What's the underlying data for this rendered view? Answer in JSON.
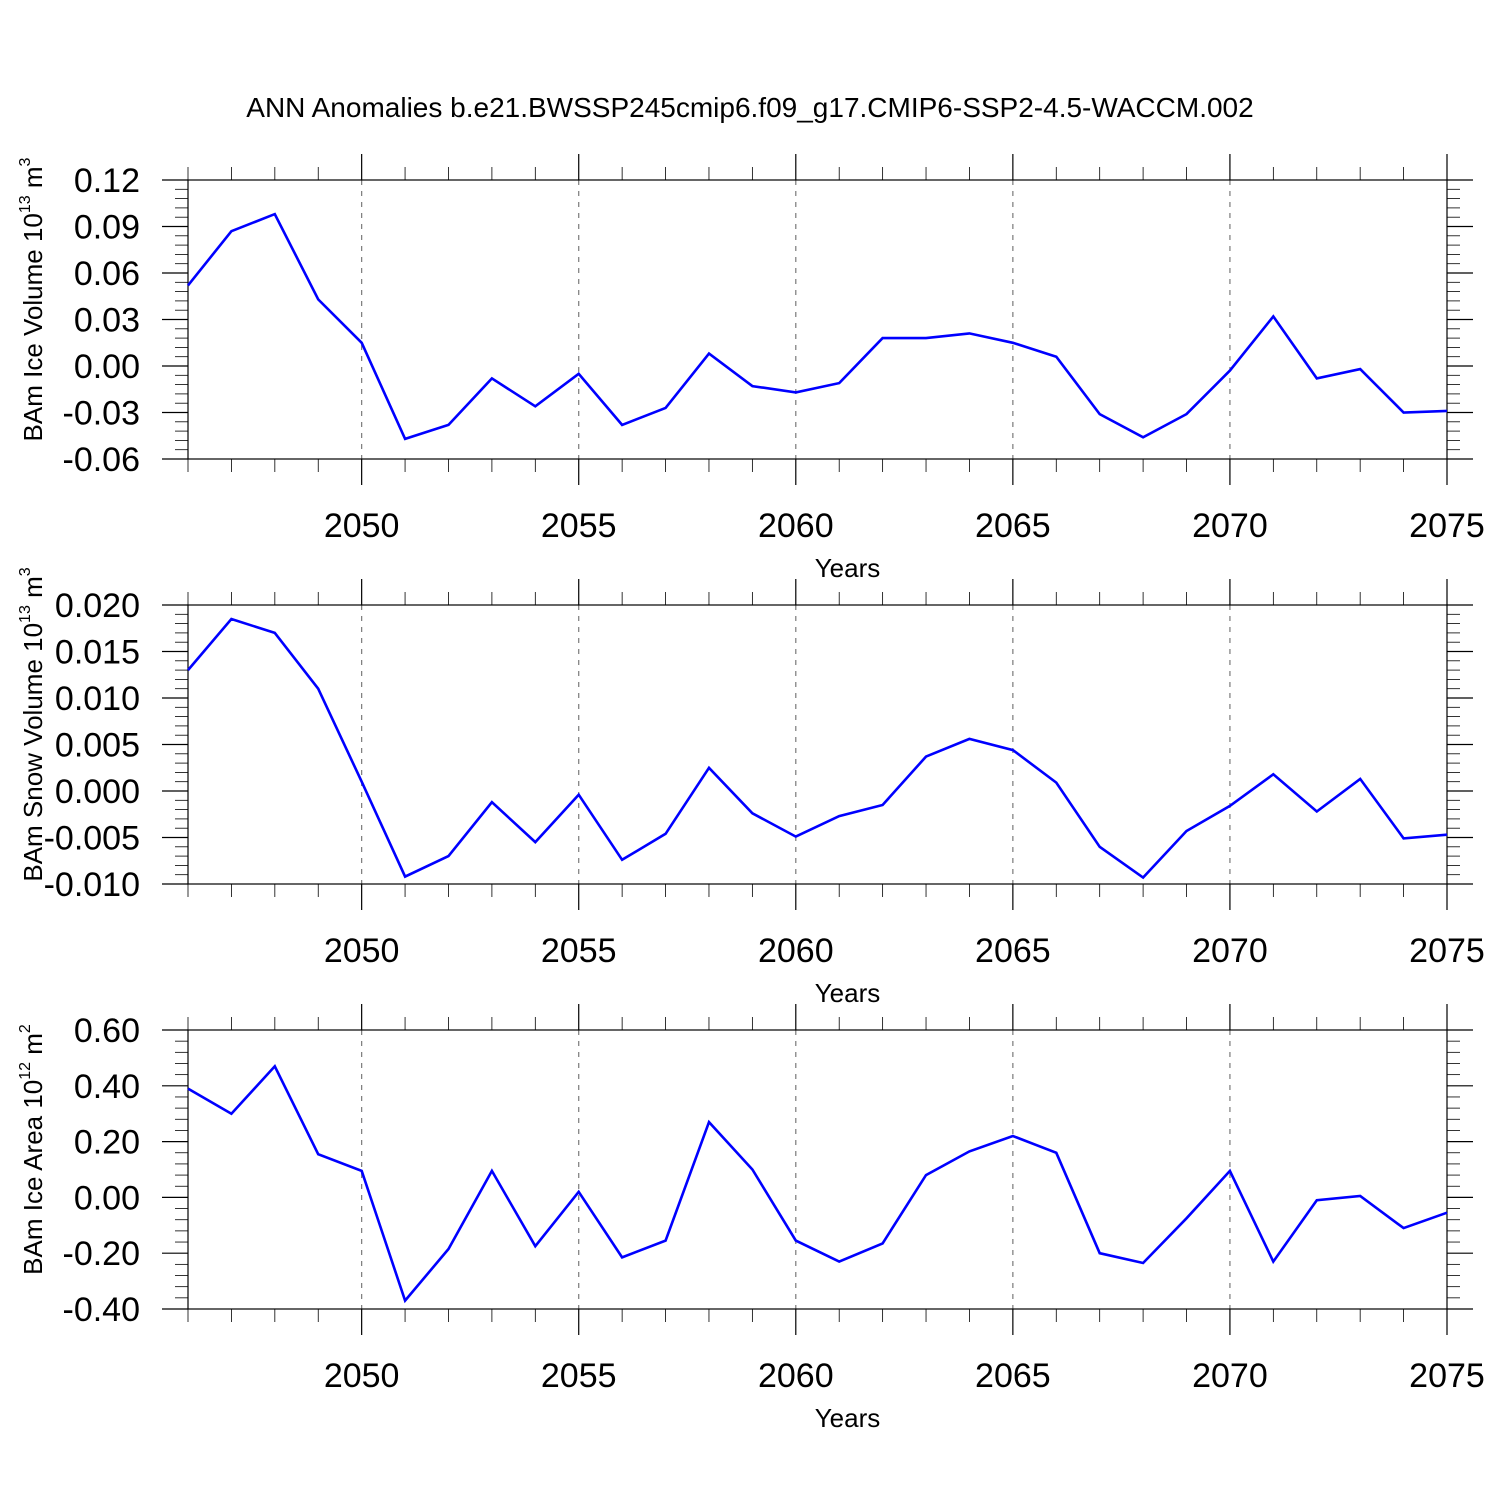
{
  "figure": {
    "title": "ANN Anomalies b.e21.BWSSP245cmip6.f09_g17.CMIP6-SSP2-4.5-WACCM.002"
  },
  "chart_data": [
    {
      "type": "line",
      "xlabel": "Years",
      "ylabel": {
        "text": "BAm Ice Volume 10",
        "exp": "13",
        "unit": " m",
        "unit_exp": "3"
      },
      "xlim": [
        2046,
        2075
      ],
      "ylim": [
        -0.06,
        0.12
      ],
      "xticks": [
        2050,
        2055,
        2060,
        2065,
        2070,
        2075
      ],
      "yticks": [
        "-0.06",
        "-0.03",
        "0.00",
        "0.03",
        "0.06",
        "0.09",
        "0.12"
      ],
      "ytick_values": [
        -0.06,
        -0.03,
        0.0,
        0.03,
        0.06,
        0.09,
        0.12
      ],
      "grid": "dashed vertical at x ticks",
      "series": [
        {
          "color": "#0000ff",
          "x": [
            2046,
            2047,
            2048,
            2049,
            2050,
            2051,
            2052,
            2053,
            2054,
            2055,
            2056,
            2057,
            2058,
            2059,
            2060,
            2061,
            2062,
            2063,
            2064,
            2065,
            2066,
            2067,
            2068,
            2069,
            2070,
            2071,
            2072,
            2073,
            2074,
            2075
          ],
          "values": [
            0.052,
            0.087,
            0.098,
            0.043,
            0.015,
            -0.047,
            -0.038,
            -0.008,
            -0.026,
            -0.005,
            -0.038,
            -0.027,
            0.008,
            -0.013,
            -0.017,
            -0.011,
            0.018,
            0.018,
            0.021,
            0.015,
            0.006,
            -0.031,
            -0.046,
            -0.031,
            -0.003,
            0.032,
            -0.008,
            -0.002,
            -0.03,
            -0.029
          ]
        }
      ]
    },
    {
      "type": "line",
      "xlabel": "Years",
      "ylabel": {
        "text": "BAm Snow Volume 10",
        "exp": "13",
        "unit": " m",
        "unit_exp": "3"
      },
      "xlim": [
        2046,
        2075
      ],
      "ylim": [
        -0.01,
        0.02
      ],
      "xticks": [
        2050,
        2055,
        2060,
        2065,
        2070,
        2075
      ],
      "yticks": [
        "-0.010",
        "-0.005",
        "0.000",
        "0.005",
        "0.010",
        "0.015",
        "0.020"
      ],
      "ytick_values": [
        -0.01,
        -0.005,
        0.0,
        0.005,
        0.01,
        0.015,
        0.02
      ],
      "grid": "dashed vertical at x ticks",
      "series": [
        {
          "color": "#0000ff",
          "x": [
            2046,
            2047,
            2048,
            2049,
            2050,
            2051,
            2052,
            2053,
            2054,
            2055,
            2056,
            2057,
            2058,
            2059,
            2060,
            2061,
            2062,
            2063,
            2064,
            2065,
            2066,
            2067,
            2068,
            2069,
            2070,
            2071,
            2072,
            2073,
            2074,
            2075
          ],
          "values": [
            0.013,
            0.0185,
            0.017,
            0.011,
            0.001,
            -0.0092,
            -0.007,
            -0.0012,
            -0.0055,
            -0.0004,
            -0.0074,
            -0.0046,
            0.0025,
            -0.0024,
            -0.0049,
            -0.0027,
            -0.0015,
            0.0037,
            0.0056,
            0.0044,
            0.0009,
            -0.006,
            -0.0093,
            -0.0043,
            -0.0016,
            0.0018,
            -0.0022,
            0.0013,
            -0.0051,
            -0.0047
          ]
        }
      ]
    },
    {
      "type": "line",
      "xlabel": "Years",
      "ylabel": {
        "text": "BAm Ice Area 10",
        "exp": "12",
        "unit": " m",
        "unit_exp": "2"
      },
      "xlim": [
        2046,
        2075
      ],
      "ylim": [
        -0.4,
        0.6
      ],
      "xticks": [
        2050,
        2055,
        2060,
        2065,
        2070,
        2075
      ],
      "yticks": [
        "-0.40",
        "-0.20",
        "0.00",
        "0.20",
        "0.40",
        "0.60"
      ],
      "ytick_values": [
        -0.4,
        -0.2,
        0.0,
        0.2,
        0.4,
        0.6
      ],
      "grid": "dashed vertical at x ticks",
      "series": [
        {
          "color": "#0000ff",
          "x": [
            2046,
            2047,
            2048,
            2049,
            2050,
            2051,
            2052,
            2053,
            2054,
            2055,
            2056,
            2057,
            2058,
            2059,
            2060,
            2061,
            2062,
            2063,
            2064,
            2065,
            2066,
            2067,
            2068,
            2069,
            2070,
            2071,
            2072,
            2073,
            2074,
            2075
          ],
          "values": [
            0.39,
            0.3,
            0.47,
            0.155,
            0.095,
            -0.37,
            -0.185,
            0.095,
            -0.175,
            0.02,
            -0.215,
            -0.155,
            0.27,
            0.1,
            -0.155,
            -0.23,
            -0.165,
            0.08,
            0.165,
            0.22,
            0.16,
            -0.2,
            -0.235,
            -0.075,
            0.095,
            -0.23,
            -0.01,
            0.005,
            -0.11,
            -0.055
          ]
        }
      ]
    }
  ]
}
